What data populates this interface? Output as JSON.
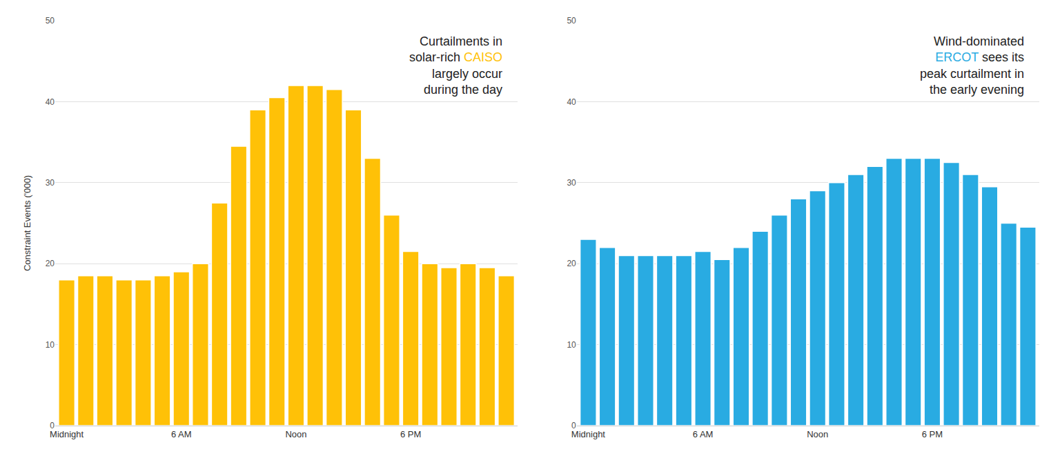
{
  "chart_data": [
    {
      "type": "bar",
      "categories": [
        "Midnight",
        null,
        null,
        null,
        null,
        null,
        "6 AM",
        null,
        null,
        null,
        null,
        null,
        "Noon",
        null,
        null,
        null,
        null,
        null,
        "6 PM",
        null,
        null,
        null,
        null,
        null
      ],
      "values": [
        18,
        18.5,
        18.5,
        18,
        18,
        18.5,
        19,
        20,
        27.5,
        34.5,
        39,
        40.5,
        42,
        42,
        41.5,
        39,
        33,
        26,
        21.5,
        20,
        19.5,
        20,
        19.5,
        18.5
      ],
      "color": "#FFC107",
      "ylabel": "Constraint Events ('000)",
      "ylim": [
        0,
        50
      ],
      "yticks": [
        0,
        10,
        20,
        30,
        40,
        50
      ],
      "grid": true,
      "annotation": [
        [
          {
            "text": "Curtailments in",
            "color": "#222222"
          }
        ],
        [
          {
            "text": "solar-rich ",
            "color": "#222222"
          },
          {
            "text": "CAISO",
            "color": "#FFC107"
          }
        ],
        [
          {
            "text": "largely occur",
            "color": "#222222"
          }
        ],
        [
          {
            "text": "during the day",
            "color": "#222222"
          }
        ]
      ]
    },
    {
      "type": "bar",
      "categories": [
        "Midnight",
        null,
        null,
        null,
        null,
        null,
        "6 AM",
        null,
        null,
        null,
        null,
        null,
        "Noon",
        null,
        null,
        null,
        null,
        null,
        "6 PM",
        null,
        null,
        null,
        null,
        null
      ],
      "values": [
        23,
        22,
        21,
        21,
        21,
        21,
        21.5,
        20.5,
        22,
        24,
        26,
        28,
        29,
        30,
        31,
        32,
        33,
        33,
        33,
        32.5,
        31,
        29.5,
        25,
        24.5
      ],
      "color": "#29ABE2",
      "ylim": [
        0,
        50
      ],
      "yticks": [
        0,
        10,
        20,
        30,
        40,
        50
      ],
      "grid": true,
      "annotation": [
        [
          {
            "text": "Wind-dominated",
            "color": "#222222"
          }
        ],
        [
          {
            "text": "ERCOT",
            "color": "#29ABE2"
          },
          {
            "text": " sees its",
            "color": "#222222"
          }
        ],
        [
          {
            "text": "peak curtailment in",
            "color": "#222222"
          }
        ],
        [
          {
            "text": "the early evening",
            "color": "#222222"
          }
        ]
      ]
    }
  ]
}
